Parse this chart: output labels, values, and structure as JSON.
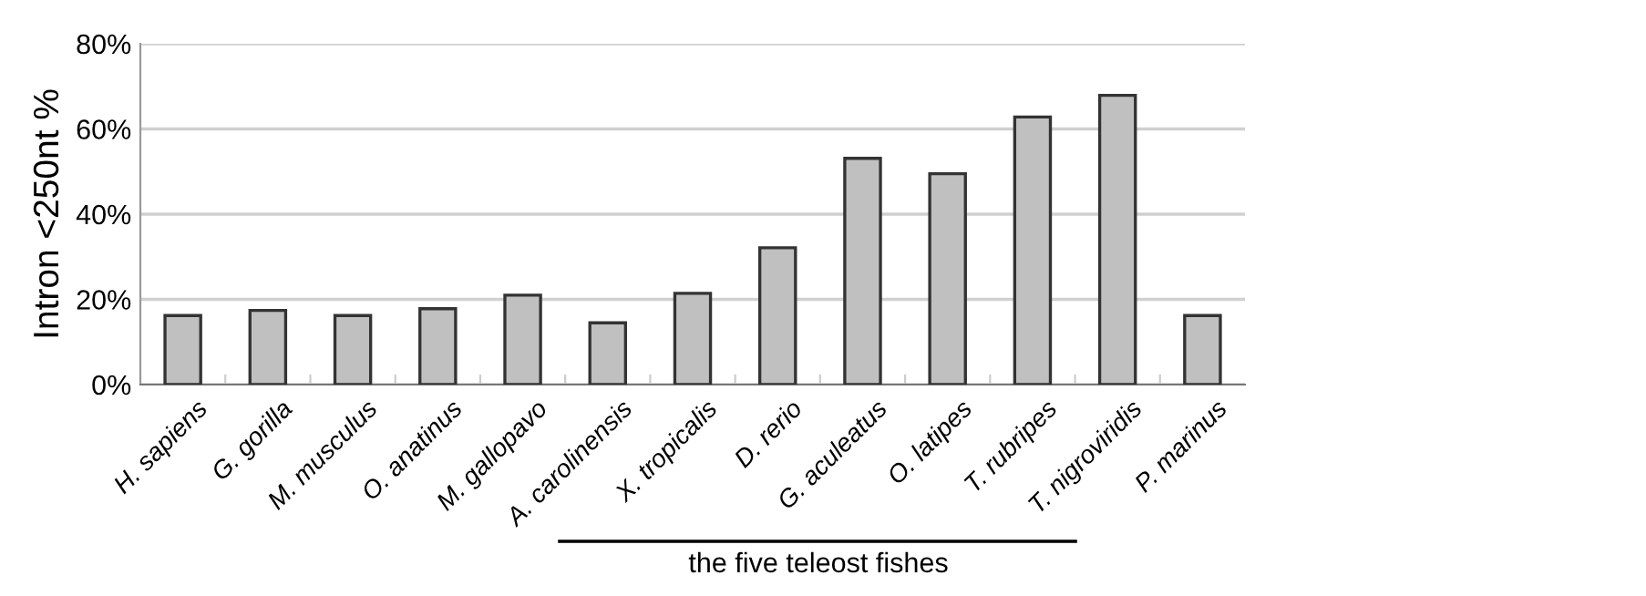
{
  "chart_data": {
    "type": "bar",
    "ylabel": "Intron <250nt %",
    "categories": [
      "H. sapiens",
      "G. gorilla",
      "M. musculus",
      "O. anatinus",
      "M. gallopavo",
      "A. carolinensis",
      "X. tropicalis",
      "D. rerio",
      "G. aculeatus",
      "O. latipes",
      "T. rubripes",
      "T. nigroviridis",
      "P. marinus"
    ],
    "values": [
      16.2,
      17.4,
      16.2,
      17.8,
      21.0,
      14.5,
      21.4,
      32.1,
      53.1,
      49.5,
      62.8,
      67.9,
      16.2
    ],
    "color": "#c0c0c0",
    "ylim": [
      0,
      80
    ],
    "yticks": [
      {
        "value": 0,
        "label": "0%"
      },
      {
        "value": 20,
        "label": "20%"
      },
      {
        "value": 40,
        "label": "40%"
      },
      {
        "value": 60,
        "label": "60%"
      },
      {
        "value": 80,
        "label": "80%"
      }
    ],
    "grid": "y",
    "legend": false,
    "annotations": [
      "the five teleost fishes"
    ]
  }
}
